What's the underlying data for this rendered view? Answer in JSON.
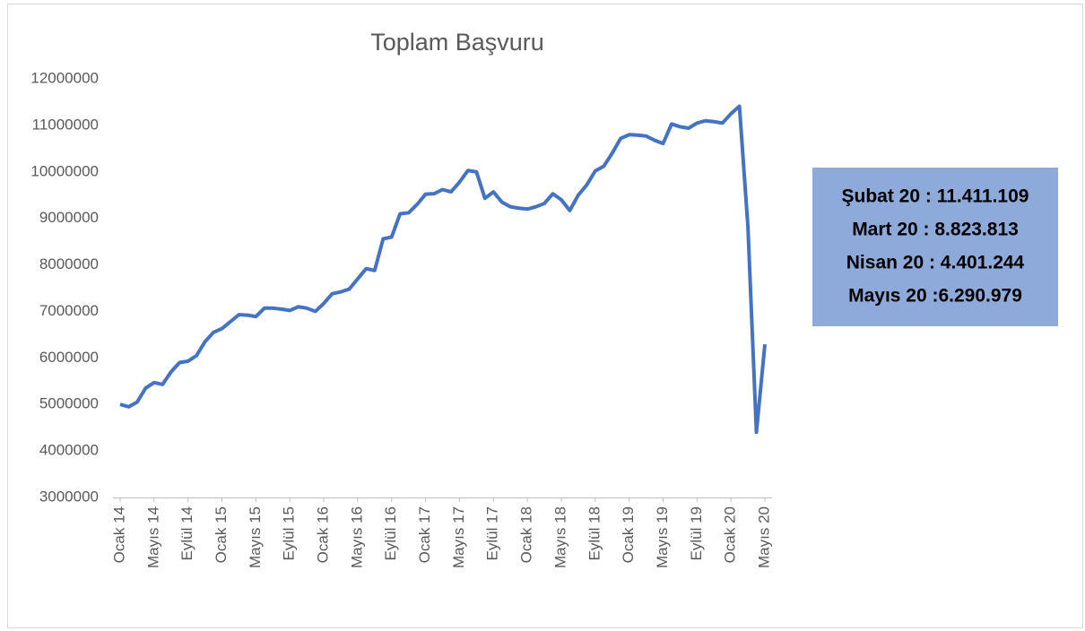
{
  "chart_data": {
    "type": "line",
    "title": "Toplam Başvuru",
    "categories": [
      "Ocak 14",
      null,
      null,
      null,
      "Mayıs 14",
      null,
      null,
      null,
      "Eylül 14",
      null,
      null,
      null,
      "Ocak 15",
      null,
      null,
      null,
      "Mayıs 15",
      null,
      null,
      null,
      "Eylül 15",
      null,
      null,
      null,
      "Ocak 16",
      null,
      null,
      null,
      "Mayıs 16",
      null,
      null,
      null,
      "Eylül 16",
      null,
      null,
      null,
      "Ocak 17",
      null,
      null,
      null,
      "Mayıs 17",
      null,
      null,
      null,
      "Eylül 17",
      null,
      null,
      null,
      "Ocak 18",
      null,
      null,
      null,
      "Mayıs 18",
      null,
      null,
      null,
      "Eylül 18",
      null,
      null,
      null,
      "Ocak 19",
      null,
      null,
      null,
      "Mayıs 19",
      null,
      null,
      null,
      "Eylül 19",
      null,
      null,
      null,
      "Ocak 20",
      null,
      null,
      null,
      "Mayıs 20"
    ],
    "series": [
      {
        "name": "Toplam Başvuru",
        "color": "#4472c4",
        "values": [
          5000000,
          4950000,
          5050000,
          5350000,
          5470000,
          5430000,
          5700000,
          5900000,
          5930000,
          6050000,
          6350000,
          6550000,
          6630000,
          6780000,
          6930000,
          6920000,
          6890000,
          7070000,
          7070000,
          7050000,
          7020000,
          7100000,
          7070000,
          7000000,
          7170000,
          7380000,
          7420000,
          7480000,
          7700000,
          7920000,
          7880000,
          8560000,
          8600000,
          9100000,
          9120000,
          9300000,
          9520000,
          9530000,
          9620000,
          9570000,
          9780000,
          10030000,
          10000000,
          9430000,
          9570000,
          9350000,
          9250000,
          9220000,
          9200000,
          9250000,
          9320000,
          9530000,
          9400000,
          9170000,
          9500000,
          9720000,
          10020000,
          10120000,
          10400000,
          10720000,
          10800000,
          10790000,
          10770000,
          10680000,
          10610000,
          11030000,
          10970000,
          10940000,
          11050000,
          11100000,
          11080000,
          11050000,
          11250000,
          11411109,
          8823813,
          4401244,
          6290979
        ]
      }
    ],
    "ylim": [
      3000000,
      12000000
    ],
    "yticks": [
      3000000,
      4000000,
      5000000,
      6000000,
      7000000,
      8000000,
      9000000,
      10000000,
      11000000,
      12000000
    ],
    "grid": false,
    "annotations": [
      "Şubat 20 : 11.411.109",
      "Mart 20 : 8.823.813",
      "Nisan 20 : 4.401.244",
      "Mayıs 20 :6.290.979"
    ]
  }
}
